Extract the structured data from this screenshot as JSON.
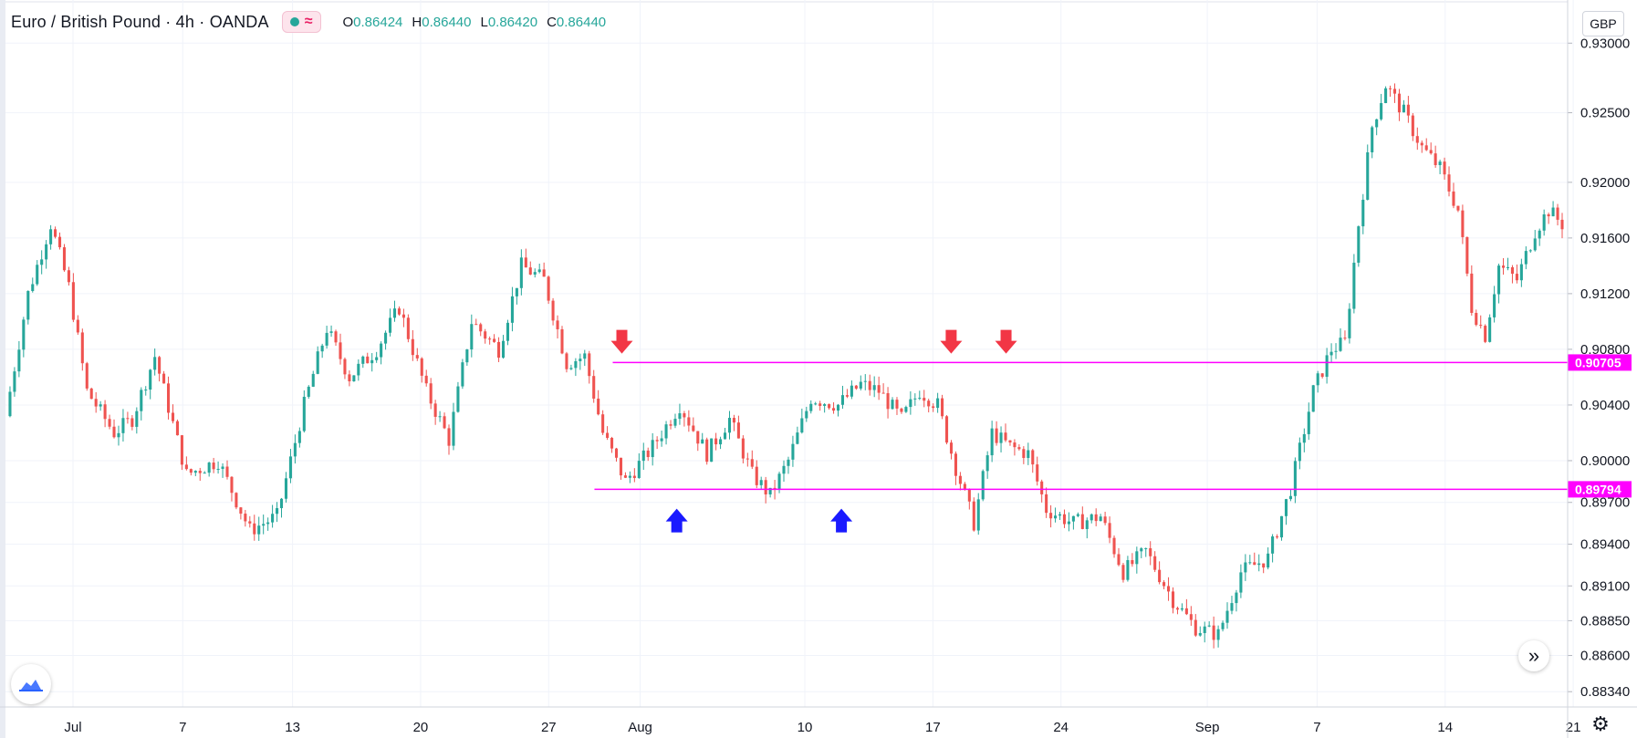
{
  "header": {
    "symbol_title": "Euro / British Pound · 4h · OANDA",
    "ohlc": {
      "o": "0.86424",
      "h": "0.86440",
      "l": "0.86420",
      "c": "0.86440"
    }
  },
  "currency_button": "GBP",
  "colors": {
    "up": "#26a69a",
    "down": "#ef5350",
    "level_line": "#ff00ff",
    "arrow_down": "#f23645",
    "arrow_up": "#1a1aff",
    "grid": "#f0f3fa"
  },
  "icons": {
    "logo": "tradingview-cloud-icon",
    "nav": "chevron-double-right-icon",
    "settings": "gear-icon"
  },
  "chart_data": {
    "type": "candlestick",
    "title": "Euro / British Pound · 4h · OANDA",
    "xlabel": "",
    "ylabel": "",
    "ylim": [
      0.8823,
      0.9331
    ],
    "y_ticks": [
      "0.93000",
      "0.92500",
      "0.92000",
      "0.91600",
      "0.91200",
      "0.90800",
      "0.90400",
      "0.90000",
      "0.89700",
      "0.89400",
      "0.89100",
      "0.88850",
      "0.88600",
      "0.88340"
    ],
    "x_ticks": [
      "Jul",
      "7",
      "13",
      "20",
      "27",
      "Aug",
      "10",
      "17",
      "24",
      "Sep",
      "7",
      "14",
      "21"
    ],
    "levels": [
      {
        "label": "0.90705",
        "value": 0.90705
      },
      {
        "label": "0.89794",
        "value": 0.89794
      }
    ],
    "close_path": [
      [
        0,
        0.9032
      ],
      [
        5,
        0.912
      ],
      [
        10,
        0.917
      ],
      [
        14,
        0.9125
      ],
      [
        18,
        0.905
      ],
      [
        24,
        0.902
      ],
      [
        28,
        0.903
      ],
      [
        33,
        0.9075
      ],
      [
        40,
        0.899
      ],
      [
        47,
        0.9
      ],
      [
        54,
        0.895
      ],
      [
        60,
        0.896
      ],
      [
        66,
        0.904
      ],
      [
        71,
        0.9095
      ],
      [
        76,
        0.906
      ],
      [
        82,
        0.908
      ],
      [
        87,
        0.911
      ],
      [
        93,
        0.905
      ],
      [
        98,
        0.9015
      ],
      [
        103,
        0.91
      ],
      [
        109,
        0.908
      ],
      [
        114,
        0.914
      ],
      [
        119,
        0.913
      ],
      [
        124,
        0.907
      ],
      [
        128,
        0.9075
      ],
      [
        132,
        0.902
      ],
      [
        137,
        0.8985
      ],
      [
        143,
        0.901
      ],
      [
        149,
        0.904
      ],
      [
        155,
        0.9005
      ],
      [
        160,
        0.903
      ],
      [
        165,
        0.899
      ],
      [
        169,
        0.8975
      ],
      [
        173,
        0.9
      ],
      [
        178,
        0.9045
      ],
      [
        184,
        0.904
      ],
      [
        189,
        0.9055
      ],
      [
        193,
        0.905
      ],
      [
        198,
        0.903
      ],
      [
        202,
        0.905
      ],
      [
        206,
        0.904
      ],
      [
        210,
        0.8995
      ],
      [
        214,
        0.8955
      ],
      [
        218,
        0.902
      ],
      [
        222,
        0.901
      ],
      [
        226,
        0.9005
      ],
      [
        230,
        0.8965
      ],
      [
        236,
        0.8955
      ],
      [
        242,
        0.896
      ],
      [
        247,
        0.892
      ],
      [
        252,
        0.8935
      ],
      [
        258,
        0.89
      ],
      [
        263,
        0.888
      ],
      [
        268,
        0.8875
      ],
      [
        273,
        0.892
      ],
      [
        279,
        0.893
      ],
      [
        284,
        0.898
      ],
      [
        289,
        0.905
      ],
      [
        293,
        0.908
      ],
      [
        296,
        0.9085
      ],
      [
        299,
        0.917
      ],
      [
        302,
        0.924
      ],
      [
        305,
        0.927
      ],
      [
        309,
        0.925
      ],
      [
        313,
        0.9225
      ],
      [
        317,
        0.921
      ],
      [
        321,
        0.918
      ],
      [
        324,
        0.911
      ],
      [
        327,
        0.909
      ],
      [
        330,
        0.914
      ],
      [
        334,
        0.913
      ],
      [
        338,
        0.9165
      ],
      [
        341,
        0.918
      ],
      [
        344,
        0.917
      ]
    ],
    "annotations": [
      {
        "type": "arrow-down",
        "date": "Jul 31",
        "price": 0.9073,
        "color": "red"
      },
      {
        "type": "arrow-down",
        "date": "Aug 18",
        "price": 0.9073,
        "color": "red"
      },
      {
        "type": "arrow-down",
        "date": "Aug 21",
        "price": 0.9073,
        "color": "red"
      },
      {
        "type": "arrow-up",
        "date": "Aug 3",
        "price": 0.8972,
        "color": "blue"
      },
      {
        "type": "arrow-up",
        "date": "Aug 12",
        "price": 0.8972,
        "color": "blue"
      }
    ]
  }
}
